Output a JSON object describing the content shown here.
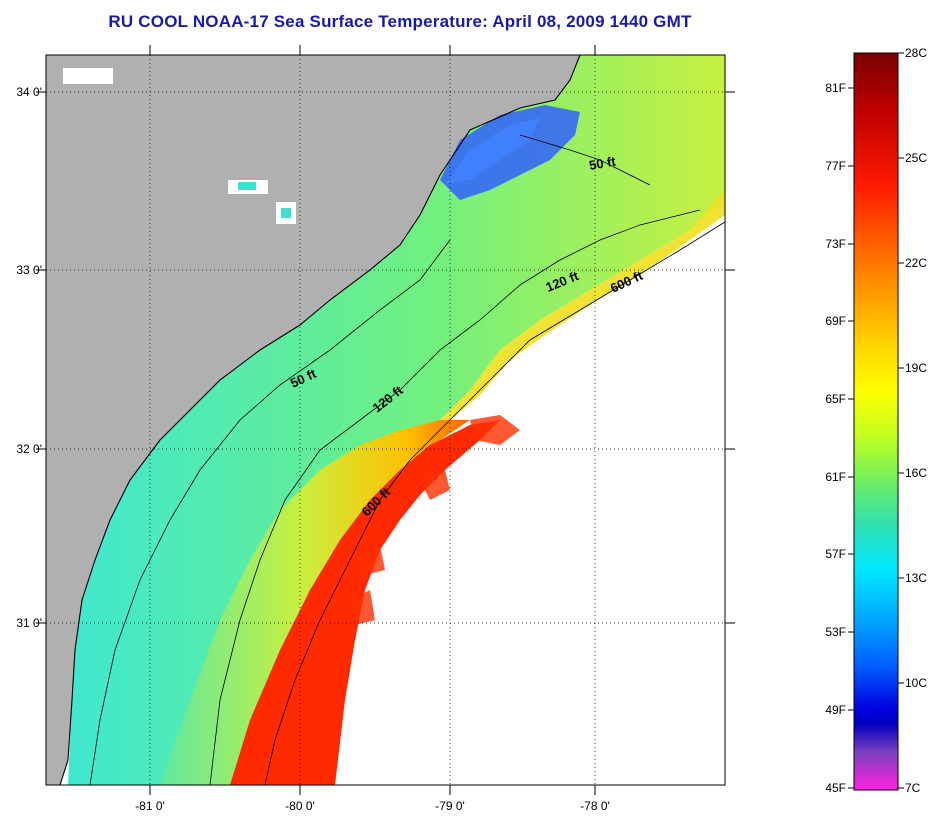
{
  "title": "RU COOL  NOAA-17  Sea Surface Temperature:  April 08, 2009 1440 GMT",
  "map": {
    "lon_ticks": [
      "-81 0'",
      "-80 0'",
      "-79 0'",
      "-78 0'"
    ],
    "lat_ticks": [
      "34 0'",
      "33 0'",
      "32 0'",
      "31 0'"
    ],
    "land_color": "#b0b0b0",
    "contours": [
      {
        "id": "contour-50ft-north",
        "label": "50 ft"
      },
      {
        "id": "contour-120ft-north",
        "label": "120 ft"
      },
      {
        "id": "contour-600ft-north",
        "label": "600 ft"
      },
      {
        "id": "contour-50ft-south",
        "label": "50 ft"
      },
      {
        "id": "contour-120ft-south",
        "label": "120 ft"
      },
      {
        "id": "contour-600ft-south",
        "label": "600 ft"
      }
    ]
  },
  "colorbar": {
    "fahrenheit_labels": [
      "81F",
      "77F",
      "73F",
      "69F",
      "65F",
      "61F",
      "57F",
      "53F",
      "49F",
      "45F"
    ],
    "celsius_labels": [
      "28C",
      "25C",
      "22C",
      "19C",
      "16C",
      "13C",
      "10C",
      "7C"
    ],
    "gradient_stops": [
      "#7a0000",
      "#c00000",
      "#ff1a00",
      "#ff6a00",
      "#ffa500",
      "#ffd800",
      "#ffff00",
      "#c0ff20",
      "#70f060",
      "#30e0b0",
      "#00e8ff",
      "#00b0ff",
      "#0060ff",
      "#0000e0",
      "#0000c0",
      "#8040c0",
      "#ff20e0"
    ]
  }
}
